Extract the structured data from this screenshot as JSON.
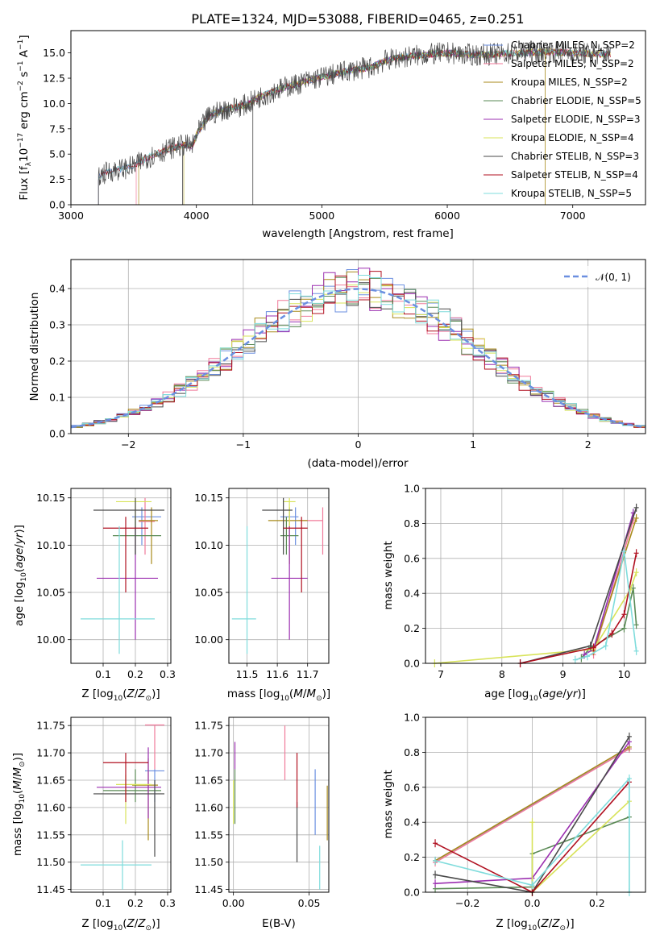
{
  "figure": {
    "title": "PLATE=1324, MJD=53088, FIBERID=0465, z=0.251",
    "legend_labels": [
      "Chabrier MILES, N_SSP=2",
      "Salpeter MILES, N_SSP=2",
      "Kroupa MILES, N_SSP=2",
      "Chabrier ELODIE, N_SSP=5",
      "Salpeter ELODIE, N_SSP=3",
      "Kroupa ELODIE, N_SSP=4",
      "Chabrier STELIB, N_SSP=3",
      "Salpeter STELIB, N_SSP=4",
      "Kroupa STELIB, N_SSP=5"
    ],
    "model_colors": [
      "#6b8fe0",
      "#f07a9a",
      "#a88a1a",
      "#5a8a55",
      "#9b2fb0",
      "#d8e35a",
      "#4a4a4a",
      "#b01020",
      "#7fdcdc"
    ]
  },
  "chart_data": [
    {
      "type": "line",
      "panel": "spectrum",
      "title": "PLATE=1324, MJD=53088, FIBERID=0465, z=0.251",
      "xlabel": "wavelength [Angstrom, rest frame]",
      "ylabel": "Flux [f_λ 10^-17 erg cm^-2 s^-1 A^-1]",
      "xlim": [
        3000,
        7580
      ],
      "ylim": [
        0,
        17.2
      ],
      "xticks": [
        "3000",
        "4000",
        "5000",
        "6000",
        "7000"
      ],
      "yticks": [
        "0.0",
        "2.5",
        "5.0",
        "7.5",
        "10.0",
        "12.5",
        "15.0"
      ],
      "grid": false,
      "legend": "upper right",
      "spectrum_continuum": {
        "x": [
          3220,
          3250,
          3300,
          3400,
          3500,
          3600,
          3700,
          3800,
          3900,
          3970,
          4000,
          4100,
          4200,
          4300,
          4400,
          4500,
          4600,
          4700,
          4800,
          4900,
          5000,
          5100,
          5200,
          5300,
          5400,
          5500,
          5600,
          5800,
          6000,
          6200,
          6400,
          6600,
          6800,
          7000,
          7200,
          7300
        ],
        "y": [
          2.7,
          3.0,
          3.3,
          3.5,
          3.8,
          4.6,
          5.1,
          5.6,
          5.9,
          5.8,
          6.9,
          8.8,
          9.3,
          9.6,
          9.9,
          10.6,
          11.1,
          11.6,
          11.9,
          12.3,
          12.6,
          12.9,
          13.2,
          13.4,
          13.6,
          14.2,
          14.5,
          14.8,
          15.0,
          14.8,
          14.9,
          15.0,
          15.1,
          15.0,
          14.9,
          14.9
        ]
      },
      "series": [
        {
          "name": "Chabrier MILES, N_SSP=2",
          "start": 3220
        },
        {
          "name": "Salpeter MILES, N_SSP=2",
          "start": 3520
        },
        {
          "name": "Kroupa MILES, N_SSP=2",
          "start": 3540
        },
        {
          "name": "Chabrier ELODIE, N_SSP=5",
          "start": 3900
        },
        {
          "name": "Salpeter ELODIE, N_SSP=3",
          "start": 3900
        },
        {
          "name": "Kroupa ELODIE, N_SSP=4",
          "start": 3900
        },
        {
          "name": "Chabrier STELIB, N_SSP=3",
          "start": 3220
        },
        {
          "name": "Salpeter STELIB, N_SSP=4",
          "start": 3220
        },
        {
          "name": "Kroupa STELIB, N_SSP=5",
          "start": 3220
        }
      ]
    },
    {
      "type": "line",
      "panel": "residual-histogram",
      "xlabel": "(data-model)/error",
      "ylabel": "Normed distribution",
      "xlim": [
        -2.5,
        2.5
      ],
      "ylim": [
        0,
        0.48
      ],
      "xticks": [
        "−2",
        "−1",
        "0",
        "1",
        "2"
      ],
      "yticks": [
        "0.0",
        "0.1",
        "0.2",
        "0.3",
        "0.4"
      ],
      "grid": true,
      "legend": "upper right",
      "reference_curve": {
        "name": "𝒩(0, 1)",
        "function": "standard normal pdf"
      },
      "bin_width": 0.1,
      "series_note": "nine step histograms, one per model, following the normal curve"
    },
    {
      "type": "scatter",
      "panel": "age-vs-Z",
      "xlabel": "Z [log10(Z/Z⊙)]",
      "ylabel": "age [log10(age/yr)]",
      "xlim": [
        0.0,
        0.31
      ],
      "ylim": [
        9.975,
        10.16
      ],
      "xticks": [
        "0.1",
        "0.2",
        "0.3"
      ],
      "yticks": [
        "10.00",
        "10.05",
        "10.10",
        "10.15"
      ],
      "grid": true,
      "points": [
        {
          "x": 0.22,
          "y": 10.13,
          "xerr": [
            0.19,
            0.28
          ],
          "yerr": [
            10.1,
            10.14
          ]
        },
        {
          "x": 0.23,
          "y": 10.125,
          "xerr": [
            0.21,
            0.26
          ],
          "yerr": [
            10.09,
            10.15
          ]
        },
        {
          "x": 0.25,
          "y": 10.126,
          "xerr": [
            0.21,
            0.27
          ],
          "yerr": [
            10.08,
            10.14
          ]
        },
        {
          "x": 0.2,
          "y": 10.11,
          "xerr": [
            0.13,
            0.28
          ],
          "yerr": [
            10.09,
            10.13
          ]
        },
        {
          "x": 0.2,
          "y": 10.065,
          "xerr": [
            0.08,
            0.27
          ],
          "yerr": [
            10.0,
            10.12
          ]
        },
        {
          "x": 0.2,
          "y": 10.146,
          "xerr": [
            0.14,
            0.25
          ],
          "yerr": [
            10.12,
            10.15
          ]
        },
        {
          "x": 0.2,
          "y": 10.137,
          "xerr": [
            0.07,
            0.29
          ],
          "yerr": [
            10.09,
            10.15
          ]
        },
        {
          "x": 0.17,
          "y": 10.118,
          "xerr": [
            0.1,
            0.24
          ],
          "yerr": [
            10.05,
            10.13
          ]
        },
        {
          "x": 0.15,
          "y": 10.022,
          "xerr": [
            0.03,
            0.26
          ],
          "yerr": [
            9.985,
            10.12
          ]
        }
      ]
    },
    {
      "type": "scatter",
      "panel": "age-vs-mass",
      "xlabel": "mass [log10(M/M⊙)]",
      "ylabel": "",
      "xlim": [
        11.44,
        11.77
      ],
      "ylim": [
        9.975,
        10.16
      ],
      "xticks": [
        "11.5",
        "11.6",
        "11.7"
      ],
      "yticks": [
        "10.00",
        "10.05",
        "10.10",
        "10.15"
      ],
      "grid": true,
      "points": [
        {
          "x": 11.66,
          "y": 10.13,
          "xerr": [
            11.61,
            11.67
          ],
          "yerr": [
            10.1,
            10.14
          ]
        },
        {
          "x": 11.75,
          "y": 10.126,
          "xerr": [
            11.67,
            11.75
          ],
          "yerr": [
            10.09,
            10.14
          ]
        },
        {
          "x": 11.64,
          "y": 10.126,
          "xerr": [
            11.57,
            11.7
          ],
          "yerr": [
            10.08,
            10.14
          ]
        },
        {
          "x": 11.63,
          "y": 10.11,
          "xerr": [
            11.61,
            11.67
          ],
          "yerr": [
            10.09,
            10.13
          ]
        },
        {
          "x": 11.64,
          "y": 10.065,
          "xerr": [
            11.58,
            11.7
          ],
          "yerr": [
            10.0,
            10.12
          ]
        },
        {
          "x": 11.64,
          "y": 10.146,
          "xerr": [
            11.62,
            11.66
          ],
          "yerr": [
            10.12,
            10.15
          ]
        },
        {
          "x": 11.62,
          "y": 10.137,
          "xerr": [
            11.55,
            11.65
          ],
          "yerr": [
            10.09,
            10.15
          ]
        },
        {
          "x": 11.68,
          "y": 10.118,
          "xerr": [
            11.62,
            11.7
          ],
          "yerr": [
            10.05,
            10.13
          ]
        },
        {
          "x": 11.5,
          "y": 10.022,
          "xerr": [
            11.45,
            11.53
          ],
          "yerr": [
            9.985,
            10.12
          ]
        }
      ]
    },
    {
      "type": "line",
      "panel": "mass-weight-vs-age",
      "xlabel": "age [log10(age/yr)]",
      "ylabel": "mass weight",
      "xlim": [
        6.75,
        10.35
      ],
      "ylim": [
        0,
        1.0
      ],
      "xticks": [
        "7",
        "8",
        "9",
        "10"
      ],
      "yticks": [
        "0.0",
        "0.2",
        "0.4",
        "0.6",
        "0.8",
        "1.0"
      ],
      "grid": true,
      "series": [
        {
          "name": "Chabrier MILES, N_SSP=2",
          "x": [
            9.5,
            10.15
          ],
          "y": [
            0.08,
            0.86
          ]
        },
        {
          "name": "Salpeter MILES, N_SSP=2",
          "x": [
            9.5,
            10.15
          ],
          "y": [
            0.05,
            0.82
          ]
        },
        {
          "name": "Kroupa MILES, N_SSP=2",
          "x": [
            9.5,
            10.2
          ],
          "y": [
            0.07,
            0.83
          ]
        },
        {
          "name": "Chabrier ELODIE, N_SSP=5",
          "x": [
            9.3,
            9.45,
            10.0,
            10.15,
            10.2
          ],
          "y": [
            0.03,
            0.09,
            0.2,
            0.43,
            0.22
          ]
        },
        {
          "name": "Salpeter ELODIE, N_SSP=3",
          "x": [
            9.35,
            9.5,
            10.15
          ],
          "y": [
            0.05,
            0.08,
            0.86
          ]
        },
        {
          "name": "Kroupa ELODIE, N_SSP=4",
          "x": [
            6.9,
            9.5,
            10.1,
            10.2
          ],
          "y": [
            0.0,
            0.08,
            0.42,
            0.52
          ]
        },
        {
          "name": "Chabrier STELIB, N_SSP=3",
          "x": [
            8.3,
            9.45,
            10.2
          ],
          "y": [
            0.0,
            0.1,
            0.89
          ]
        },
        {
          "name": "Salpeter STELIB, N_SSP=4",
          "x": [
            8.3,
            9.5,
            9.8,
            10.0,
            10.2
          ],
          "y": [
            0.0,
            0.09,
            0.17,
            0.28,
            0.63
          ]
        },
        {
          "name": "Kroupa STELIB, N_SSP=5",
          "x": [
            9.2,
            9.4,
            9.7,
            10.0,
            10.2
          ],
          "y": [
            0.02,
            0.04,
            0.1,
            0.64,
            0.07
          ]
        }
      ]
    },
    {
      "type": "scatter",
      "panel": "mass-vs-Z",
      "xlabel": "Z [log10(Z/Z⊙)]",
      "ylabel": "mass [log10(M/M⊙)]",
      "xlim": [
        0.0,
        0.31
      ],
      "ylim": [
        11.445,
        11.765
      ],
      "xticks": [
        "0.1",
        "0.2",
        "0.3"
      ],
      "yticks": [
        "11.45",
        "11.50",
        "11.55",
        "11.60",
        "11.65",
        "11.70",
        "11.75"
      ],
      "grid": true,
      "points": [
        {
          "x": 0.26,
          "y": 11.667,
          "xerr": [
            0.23,
            0.29
          ],
          "yerr": [
            11.61,
            11.67
          ]
        },
        {
          "x": 0.26,
          "y": 11.751,
          "xerr": [
            0.23,
            0.29
          ],
          "yerr": [
            11.67,
            11.75
          ]
        },
        {
          "x": 0.24,
          "y": 11.641,
          "xerr": [
            0.19,
            0.27
          ],
          "yerr": [
            11.54,
            11.69
          ]
        },
        {
          "x": 0.2,
          "y": 11.631,
          "xerr": [
            0.1,
            0.28
          ],
          "yerr": [
            11.61,
            11.67
          ]
        },
        {
          "x": 0.24,
          "y": 11.637,
          "xerr": [
            0.08,
            0.28
          ],
          "yerr": [
            11.58,
            11.71
          ]
        },
        {
          "x": 0.17,
          "y": 11.642,
          "xerr": [
            0.14,
            0.25
          ],
          "yerr": [
            11.57,
            11.66
          ]
        },
        {
          "x": 0.26,
          "y": 11.625,
          "xerr": [
            0.07,
            0.29
          ],
          "yerr": [
            11.51,
            11.65
          ]
        },
        {
          "x": 0.17,
          "y": 11.682,
          "xerr": [
            0.1,
            0.24
          ],
          "yerr": [
            11.61,
            11.7
          ]
        },
        {
          "x": 0.16,
          "y": 11.495,
          "xerr": [
            0.03,
            0.25
          ],
          "yerr": [
            11.45,
            11.54
          ]
        }
      ]
    },
    {
      "type": "scatter",
      "panel": "mass-vs-EBV",
      "xlabel": "E(B-V)",
      "ylabel": "",
      "xlim": [
        -0.003,
        0.063
      ],
      "ylim": [
        11.445,
        11.765
      ],
      "xticks": [
        "0.00",
        "0.05"
      ],
      "yticks": [
        "11.45",
        "11.50",
        "11.55",
        "11.60",
        "11.65",
        "11.70",
        "11.75"
      ],
      "grid": true,
      "points": [
        {
          "x": 0.054,
          "y": 11.61,
          "yerr": [
            11.55,
            11.67
          ]
        },
        {
          "x": 0.034,
          "y": 11.69,
          "yerr": [
            11.65,
            11.75
          ]
        },
        {
          "x": 0.062,
          "y": 11.6,
          "yerr": [
            11.54,
            11.64
          ]
        },
        {
          "x": 0.001,
          "y": 11.63,
          "yerr": [
            11.57,
            11.67
          ]
        },
        {
          "x": 0.001,
          "y": 11.7,
          "yerr": [
            11.67,
            11.72
          ]
        },
        {
          "x": 0.0,
          "y": 11.6,
          "yerr": [
            11.57,
            11.65
          ]
        },
        {
          "x": 0.042,
          "y": 11.56,
          "yerr": [
            11.5,
            11.61
          ]
        },
        {
          "x": 0.042,
          "y": 11.65,
          "yerr": [
            11.6,
            11.7
          ]
        },
        {
          "x": 0.057,
          "y": 11.48,
          "yerr": [
            11.45,
            11.53
          ]
        }
      ]
    },
    {
      "type": "line",
      "panel": "mass-weight-vs-Z",
      "xlabel": "Z [log10(Z/Z⊙)]",
      "ylabel": "mass weight",
      "xlim": [
        -0.33,
        0.35
      ],
      "ylim": [
        0,
        1.0
      ],
      "xticks": [
        "−0.2",
        "0.0",
        "0.2"
      ],
      "yticks": [
        "0.0",
        "0.2",
        "0.4",
        "0.6",
        "0.8",
        "1.0"
      ],
      "grid": true,
      "series": [
        {
          "name": "Chabrier MILES, N_SSP=2",
          "x": [
            -0.3,
            0.3
          ],
          "y": [
            0.18,
            0.82
          ]
        },
        {
          "name": "Salpeter MILES, N_SSP=2",
          "x": [
            -0.3,
            0.3
          ],
          "y": [
            0.17,
            0.82
          ]
        },
        {
          "name": "Kroupa MILES, N_SSP=2",
          "x": [
            -0.3,
            0.3
          ],
          "y": [
            0.18,
            0.83
          ]
        },
        {
          "name": "Chabrier ELODIE, N_SSP=5",
          "x": [
            -0.3,
            0.0,
            0.0,
            0.3
          ],
          "y": [
            0.02,
            0.03,
            0.22,
            0.43
          ]
        },
        {
          "name": "Salpeter ELODIE, N_SSP=3",
          "x": [
            -0.3,
            0.0,
            0.3
          ],
          "y": [
            0.05,
            0.08,
            0.86
          ]
        },
        {
          "name": "Kroupa ELODIE, N_SSP=4",
          "x": [
            0.0,
            0.0,
            0.3
          ],
          "y": [
            0.4,
            0.0,
            0.52
          ]
        },
        {
          "name": "Chabrier STELIB, N_SSP=3",
          "x": [
            -0.3,
            0.0,
            0.3
          ],
          "y": [
            0.1,
            0.0,
            0.89
          ]
        },
        {
          "name": "Salpeter STELIB, N_SSP=4",
          "x": [
            -0.3,
            0.0,
            0.3
          ],
          "y": [
            0.28,
            0.0,
            0.63
          ]
        },
        {
          "name": "Kroupa STELIB, N_SSP=5",
          "x": [
            -0.3,
            0.0,
            0.3,
            0.3
          ],
          "y": [
            0.18,
            0.04,
            0.65,
            0.0
          ]
        }
      ]
    }
  ]
}
